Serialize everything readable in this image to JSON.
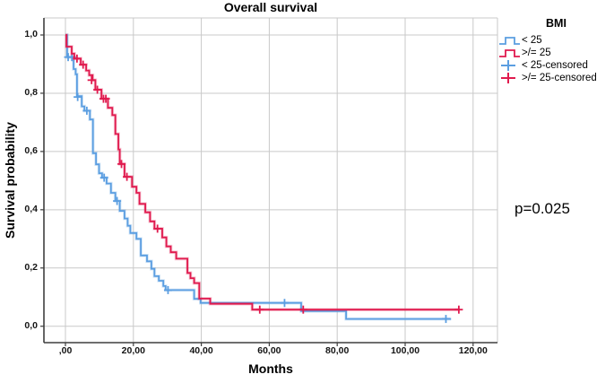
{
  "header": {
    "title": "Overall survival"
  },
  "axes": {
    "x_label": "Months",
    "y_label": "Survival probability"
  },
  "annotation": {
    "p_value": "p=0.025"
  },
  "legend": {
    "title": "BMI",
    "items": [
      {
        "label": "< 25",
        "symbol": "step-line",
        "color": "#5b9ee1"
      },
      {
        "label": ">/= 25",
        "symbol": "step-line",
        "color": "#e01a4e"
      },
      {
        "label": "< 25-censored",
        "symbol": "plus",
        "color": "#5b9ee1"
      },
      {
        "label": ">/= 25-censored",
        "symbol": "plus",
        "color": "#e01a4e"
      }
    ]
  },
  "colors": {
    "gridline": "#c9c9c9",
    "axis": "#3f3f3f",
    "blue": "#5b9ee1",
    "red": "#e01a4e",
    "text": "#000000"
  },
  "chart_data": {
    "type": "line",
    "subtype": "kaplan-meier-step",
    "title": "Overall survival",
    "xlabel": "Months",
    "ylabel": "Survival probability",
    "xlim": [
      0,
      120
    ],
    "ylim": [
      0,
      1
    ],
    "grid": true,
    "legend_position": "top-right",
    "x_ticks": [
      {
        "value": 0,
        "label": ",00"
      },
      {
        "value": 20,
        "label": "20,00"
      },
      {
        "value": 40,
        "label": "40,00"
      },
      {
        "value": 60,
        "label": "60,00"
      },
      {
        "value": 80,
        "label": "80,00"
      },
      {
        "value": 100,
        "label": "100,00"
      },
      {
        "value": 120,
        "label": "120,00"
      }
    ],
    "y_ticks": [
      {
        "value": 0.0,
        "label": "0,0"
      },
      {
        "value": 0.2,
        "label": "0,2"
      },
      {
        "value": 0.4,
        "label": "0,4"
      },
      {
        "value": 0.6,
        "label": "0,6"
      },
      {
        "value": 0.8,
        "label": "0,8"
      },
      {
        "value": 1.0,
        "label": "1,0"
      }
    ],
    "series": [
      {
        "name": "< 25",
        "color": "#5b9ee1",
        "end_x": 113.5,
        "steps": [
          [
            0,
            1.0
          ],
          [
            0.5,
            0.924
          ],
          [
            2.4,
            0.883
          ],
          [
            3.0,
            0.865
          ],
          [
            3.4,
            0.79
          ],
          [
            4.8,
            0.755
          ],
          [
            5.6,
            0.74
          ],
          [
            7.2,
            0.71
          ],
          [
            8.1,
            0.594
          ],
          [
            9.0,
            0.556
          ],
          [
            9.9,
            0.525
          ],
          [
            10.8,
            0.51
          ],
          [
            12.1,
            0.49
          ],
          [
            13.4,
            0.458
          ],
          [
            14.7,
            0.43
          ],
          [
            16.0,
            0.396
          ],
          [
            17.4,
            0.37
          ],
          [
            18.3,
            0.345
          ],
          [
            19.1,
            0.32
          ],
          [
            20.9,
            0.3
          ],
          [
            22.2,
            0.243
          ],
          [
            24.0,
            0.223
          ],
          [
            25.3,
            0.197
          ],
          [
            26.2,
            0.172
          ],
          [
            27.5,
            0.156
          ],
          [
            28.8,
            0.138
          ],
          [
            29.5,
            0.124
          ],
          [
            37.9,
            0.094
          ],
          [
            39.8,
            0.08
          ],
          [
            69.4,
            0.052
          ],
          [
            82.6,
            0.025
          ]
        ],
        "censored": [
          [
            0.8,
            0.924
          ],
          [
            1.9,
            0.924
          ],
          [
            3.6,
            0.787
          ],
          [
            6.3,
            0.74
          ],
          [
            11.4,
            0.51
          ],
          [
            15.2,
            0.43
          ],
          [
            30.2,
            0.124
          ],
          [
            64.5,
            0.08
          ],
          [
            112.0,
            0.025
          ]
        ]
      },
      {
        "name": ">/= 25",
        "color": "#e01a4e",
        "end_x": 116,
        "steps": [
          [
            0,
            1.0
          ],
          [
            0.3,
            0.96
          ],
          [
            1.85,
            0.936
          ],
          [
            2.6,
            0.919
          ],
          [
            4.5,
            0.898
          ],
          [
            6.1,
            0.878
          ],
          [
            7.0,
            0.862
          ],
          [
            8.0,
            0.845
          ],
          [
            8.8,
            0.812
          ],
          [
            10.6,
            0.781
          ],
          [
            12.5,
            0.75
          ],
          [
            13.8,
            0.725
          ],
          [
            14.7,
            0.66
          ],
          [
            15.6,
            0.607
          ],
          [
            16.0,
            0.557
          ],
          [
            17.4,
            0.513
          ],
          [
            19.6,
            0.479
          ],
          [
            20.9,
            0.458
          ],
          [
            21.8,
            0.42
          ],
          [
            23.5,
            0.391
          ],
          [
            24.9,
            0.36
          ],
          [
            26.2,
            0.335
          ],
          [
            28.5,
            0.305
          ],
          [
            29.7,
            0.274
          ],
          [
            31.0,
            0.254
          ],
          [
            32.6,
            0.232
          ],
          [
            35.9,
            0.183
          ],
          [
            36.8,
            0.165
          ],
          [
            37.9,
            0.148
          ],
          [
            39.4,
            0.095
          ],
          [
            42.6,
            0.077
          ],
          [
            55.0,
            0.057
          ]
        ],
        "censored": [
          [
            3.4,
            0.919
          ],
          [
            5.2,
            0.898
          ],
          [
            7.7,
            0.845
          ],
          [
            9.4,
            0.812
          ],
          [
            11.2,
            0.781
          ],
          [
            11.9,
            0.781
          ],
          [
            16.5,
            0.557
          ],
          [
            18.1,
            0.513
          ],
          [
            27.1,
            0.335
          ],
          [
            57.2,
            0.057
          ],
          [
            70.0,
            0.057
          ],
          [
            115.8,
            0.057
          ]
        ]
      }
    ]
  }
}
